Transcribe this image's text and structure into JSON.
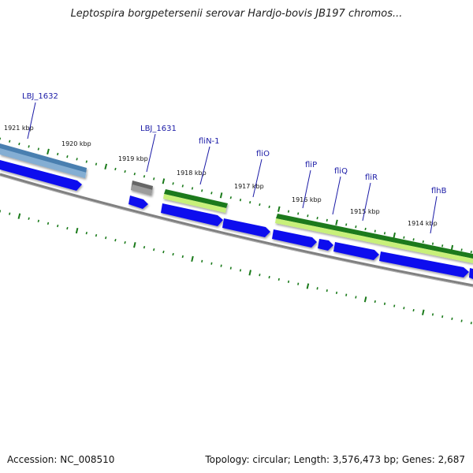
{
  "title": "Leptospira borgpetersenii serovar Hardjo-bovis JB197 chromos...",
  "footer": {
    "accession": "Accession: NC_008510",
    "topology": "Topology: circular; Length: 3,576,473 bp; Genes: 2,687"
  },
  "ruler": {
    "labels": [
      "1921 kbp",
      "1920 kbp",
      "1919 kbp",
      "1918 kbp",
      "1917 kbp",
      "1916 kbp",
      "1915 kbp",
      "1914 kbp"
    ]
  },
  "genes": [
    {
      "name": "LBJ_1632"
    },
    {
      "name": "LBJ_1631"
    },
    {
      "name": "fliN-1"
    },
    {
      "name": "fliO"
    },
    {
      "name": "fliP"
    },
    {
      "name": "fliQ"
    },
    {
      "name": "fliR"
    },
    {
      "name": "flhB"
    }
  ],
  "colors": {
    "cds": "#1010ee",
    "cog_green": "#1f7a1f",
    "cog_lime": "#c8f07a",
    "cog_steel": "#4a7fb0",
    "cog_gray": "#666666",
    "backbone": "#808080",
    "tick": "#1a7a1a",
    "label": "#1a1aa6"
  }
}
